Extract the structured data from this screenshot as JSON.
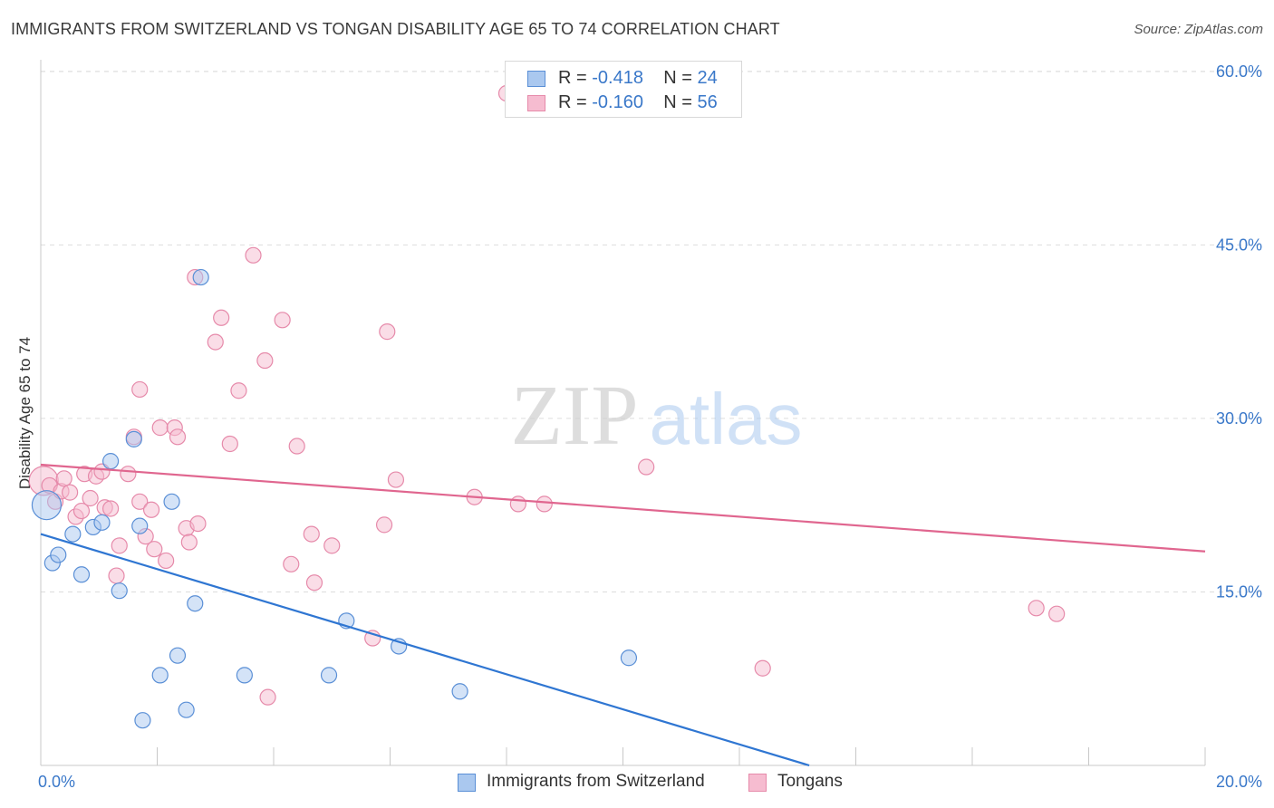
{
  "title": "IMMIGRANTS FROM SWITZERLAND VS TONGAN DISABILITY AGE 65 TO 74 CORRELATION CHART",
  "source": "Source: ZipAtlas.com",
  "watermark": {
    "zip": "ZIP",
    "atlas": "atlas"
  },
  "legend": {
    "rows": [
      {
        "r_label": "R = ",
        "r_value": "-0.418",
        "n_label": "N = ",
        "n_value": "24"
      },
      {
        "r_label": "R = ",
        "r_value": "-0.160",
        "n_label": "N = ",
        "n_value": "56"
      }
    ]
  },
  "bottom_legend": [
    "Immigrants from Switzerland",
    "Tongans"
  ],
  "colors": {
    "blue_fill": "#aac8ef",
    "blue_stroke": "#5a8fd6",
    "blue_line": "#2f76d2",
    "pink_fill": "#f6bcd0",
    "pink_stroke": "#e68aaa",
    "pink_line": "#e0668f",
    "tick_text": "#3a78c9",
    "grid": "#dddddd"
  },
  "chart_data": {
    "type": "scatter",
    "title": "IMMIGRANTS FROM SWITZERLAND VS TONGAN DISABILITY AGE 65 TO 74 CORRELATION CHART",
    "xlabel": "",
    "ylabel": "Disability Age 65 to 74",
    "xlim": [
      0,
      20
    ],
    "ylim": [
      0,
      61
    ],
    "x_ticks": [
      {
        "value": 0,
        "label": "0.0%"
      },
      {
        "value": 20,
        "label": "20.0%"
      }
    ],
    "y_ticks": [
      {
        "value": 15,
        "label": "15.0%"
      },
      {
        "value": 30,
        "label": "30.0%"
      },
      {
        "value": 45,
        "label": "45.0%"
      },
      {
        "value": 60,
        "label": "60.0%"
      }
    ],
    "grid": true,
    "legend_position": "top-center",
    "series": [
      {
        "name": "Immigrants from Switzerland",
        "color": "blue",
        "points": [
          [
            0.1,
            22.5
          ],
          [
            0.2,
            17.5
          ],
          [
            0.3,
            18.2
          ],
          [
            0.55,
            20.0
          ],
          [
            0.7,
            16.5
          ],
          [
            0.9,
            20.6
          ],
          [
            1.05,
            21.0
          ],
          [
            1.2,
            26.3
          ],
          [
            1.35,
            15.1
          ],
          [
            1.6,
            28.2
          ],
          [
            1.7,
            20.7
          ],
          [
            1.75,
            3.9
          ],
          [
            2.05,
            7.8
          ],
          [
            2.25,
            22.8
          ],
          [
            2.35,
            9.5
          ],
          [
            2.5,
            4.8
          ],
          [
            2.65,
            14.0
          ],
          [
            2.75,
            42.2
          ],
          [
            3.5,
            7.8
          ],
          [
            4.95,
            7.8
          ],
          [
            5.25,
            12.5
          ],
          [
            6.15,
            10.3
          ],
          [
            7.2,
            6.4
          ],
          [
            10.1,
            9.3
          ]
        ],
        "trend": {
          "x": [
            0,
            13.2
          ],
          "y": [
            20.0,
            0
          ]
        }
      },
      {
        "name": "Tongans",
        "color": "pink",
        "points": [
          [
            0.05,
            24.6
          ],
          [
            0.15,
            24.2
          ],
          [
            0.25,
            22.8
          ],
          [
            0.35,
            23.7
          ],
          [
            0.4,
            24.8
          ],
          [
            0.5,
            23.6
          ],
          [
            0.6,
            21.5
          ],
          [
            0.7,
            22.0
          ],
          [
            0.75,
            25.2
          ],
          [
            0.85,
            23.1
          ],
          [
            0.95,
            25.0
          ],
          [
            1.05,
            25.4
          ],
          [
            1.1,
            22.3
          ],
          [
            1.2,
            22.2
          ],
          [
            1.3,
            16.4
          ],
          [
            1.35,
            19.0
          ],
          [
            1.5,
            25.2
          ],
          [
            1.6,
            28.4
          ],
          [
            1.7,
            22.8
          ],
          [
            1.7,
            32.5
          ],
          [
            1.8,
            19.8
          ],
          [
            1.9,
            22.1
          ],
          [
            1.95,
            18.7
          ],
          [
            2.05,
            29.2
          ],
          [
            2.15,
            17.7
          ],
          [
            2.3,
            29.2
          ],
          [
            2.35,
            28.4
          ],
          [
            2.5,
            20.5
          ],
          [
            2.55,
            19.3
          ],
          [
            2.65,
            42.2
          ],
          [
            2.7,
            20.9
          ],
          [
            3.0,
            36.6
          ],
          [
            3.1,
            38.7
          ],
          [
            3.25,
            27.8
          ],
          [
            3.4,
            32.4
          ],
          [
            3.65,
            44.1
          ],
          [
            3.85,
            35.0
          ],
          [
            3.9,
            5.9
          ],
          [
            4.15,
            38.5
          ],
          [
            4.3,
            17.4
          ],
          [
            4.4,
            27.6
          ],
          [
            4.65,
            20.0
          ],
          [
            4.7,
            15.8
          ],
          [
            5.0,
            19.0
          ],
          [
            5.7,
            11.0
          ],
          [
            5.9,
            20.8
          ],
          [
            5.95,
            37.5
          ],
          [
            6.1,
            24.7
          ],
          [
            7.45,
            23.2
          ],
          [
            8.0,
            58.1
          ],
          [
            8.2,
            22.6
          ],
          [
            8.65,
            22.6
          ],
          [
            10.4,
            25.8
          ],
          [
            12.4,
            8.4
          ],
          [
            17.1,
            13.6
          ],
          [
            17.45,
            13.1
          ]
        ],
        "trend": {
          "x": [
            0,
            20
          ],
          "y": [
            26.0,
            18.5
          ]
        }
      }
    ]
  }
}
